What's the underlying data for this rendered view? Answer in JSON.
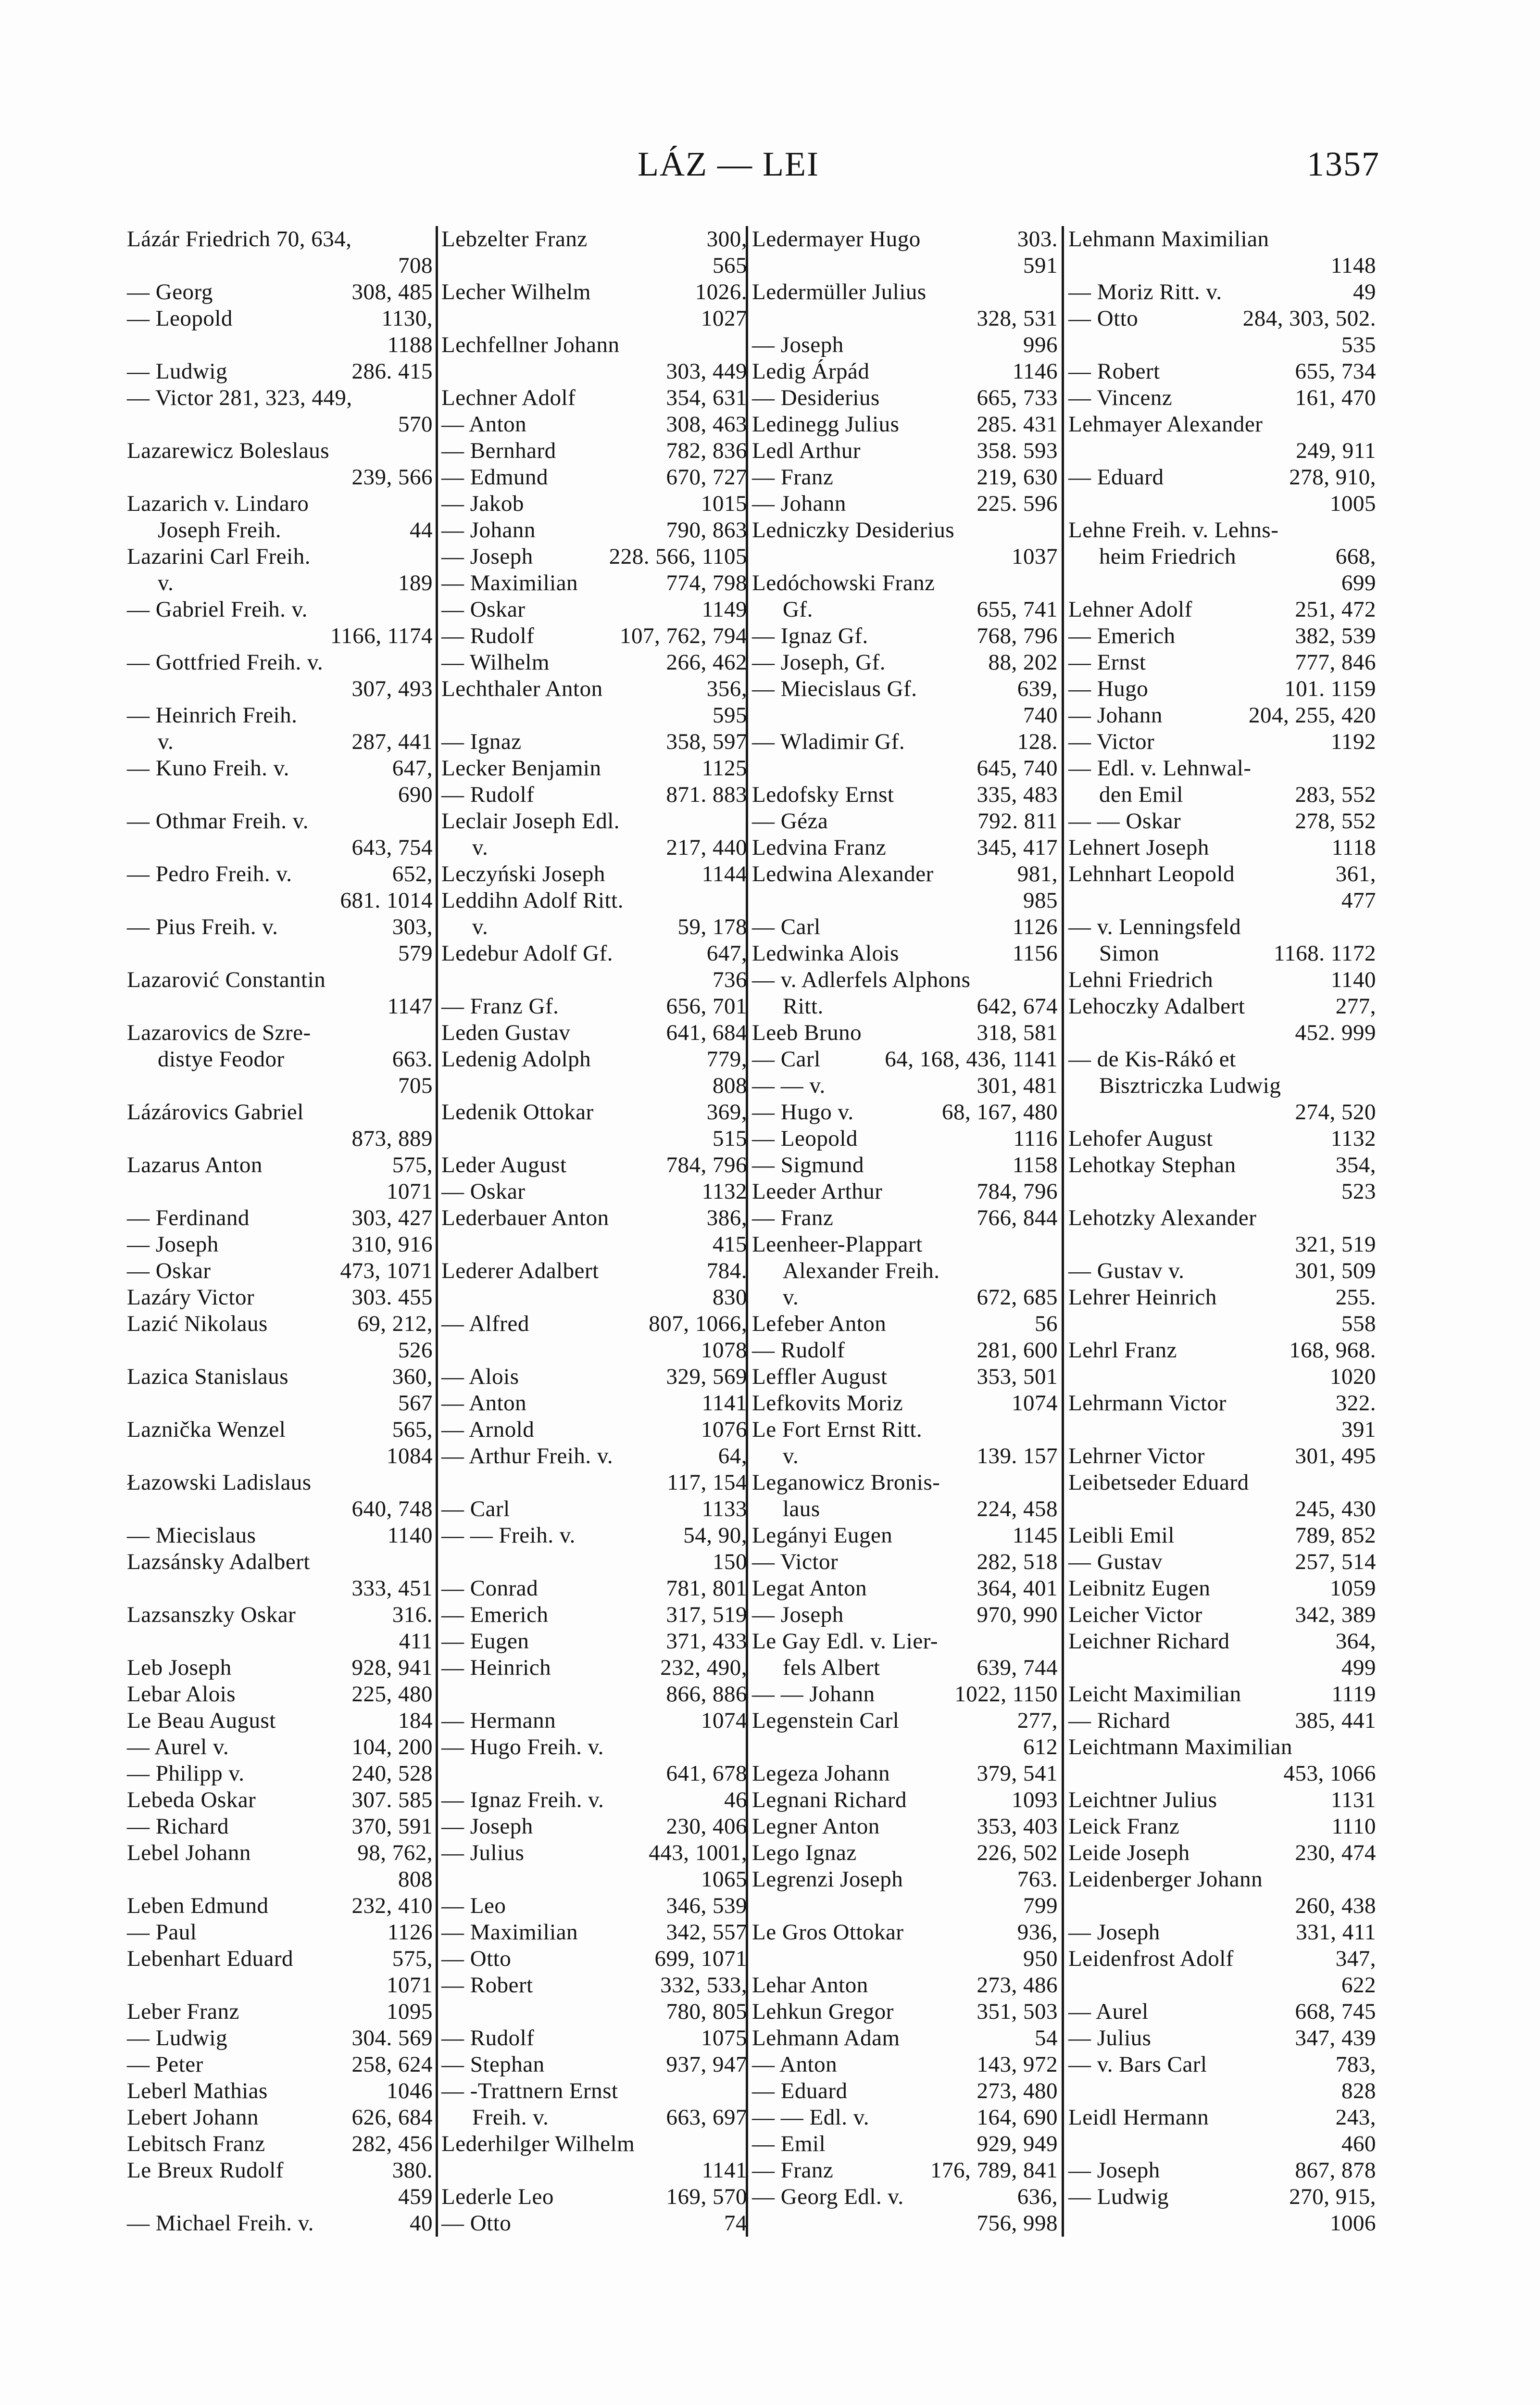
{
  "header": {
    "title": "LÁZ — LEI",
    "page_number": "1357"
  },
  "columns": [
    {
      "lines": [
        [
          "Lázár Friedrich 70, 634,",
          ""
        ],
        [
          "",
          "708"
        ],
        [
          "— Georg",
          "308, 485"
        ],
        [
          "— Leopold",
          "1130,"
        ],
        [
          "",
          "1188"
        ],
        [
          "— Ludwig",
          "286. 415"
        ],
        [
          "— Victor 281, 323, 449,",
          ""
        ],
        [
          "",
          "570"
        ],
        [
          "Lazarewicz Boleslaus",
          ""
        ],
        [
          "",
          "239, 566"
        ],
        [
          "Lazarich v. Lindaro",
          ""
        ],
        [
          "Joseph Freih.",
          "44"
        ],
        [
          "Lazarini Carl Freih.",
          ""
        ],
        [
          "v.",
          "189"
        ],
        [
          "— Gabriel Freih. v.",
          ""
        ],
        [
          "",
          "1166, 1174"
        ],
        [
          "— Gottfried Freih. v.",
          ""
        ],
        [
          "",
          "307, 493"
        ],
        [
          "— Heinrich Freih.",
          ""
        ],
        [
          "v.",
          "287, 441"
        ],
        [
          "— Kuno Freih. v.",
          "647,"
        ],
        [
          "",
          "690"
        ],
        [
          "— Othmar Freih. v.",
          ""
        ],
        [
          "",
          "643, 754"
        ],
        [
          "— Pedro Freih. v.",
          "652,"
        ],
        [
          "",
          "681. 1014"
        ],
        [
          "— Pius Freih. v.",
          "303,"
        ],
        [
          "",
          "579"
        ],
        [
          "Lazarović Constantin",
          ""
        ],
        [
          "",
          "1147"
        ],
        [
          "Lazarovics de Szre-",
          ""
        ],
        [
          "distye Feodor",
          "663."
        ],
        [
          "",
          "705"
        ],
        [
          "Lázárovics Gabriel",
          ""
        ],
        [
          "",
          "873, 889"
        ],
        [
          "Lazarus Anton",
          "575,"
        ],
        [
          "",
          "1071"
        ],
        [
          "— Ferdinand",
          "303, 427"
        ],
        [
          "— Joseph",
          "310, 916"
        ],
        [
          "— Oskar",
          "473, 1071"
        ],
        [
          "Lazáry Victor",
          "303. 455"
        ],
        [
          "Lazić Nikolaus",
          "69, 212,"
        ],
        [
          "",
          "526"
        ],
        [
          "Lazica Stanislaus",
          "360,"
        ],
        [
          "",
          "567"
        ],
        [
          "Laznička Wenzel",
          "565,"
        ],
        [
          "",
          "1084"
        ],
        [
          "Łazowski Ladislaus",
          ""
        ],
        [
          "",
          "640, 748"
        ],
        [
          "— Miecislaus",
          "1140"
        ],
        [
          "Lazsánsky Adalbert",
          ""
        ],
        [
          "",
          "333, 451"
        ],
        [
          "Lazsanszky Oskar",
          "316."
        ],
        [
          "",
          "411"
        ],
        [
          "Leb Joseph",
          "928, 941"
        ],
        [
          "Lebar Alois",
          "225, 480"
        ],
        [
          "Le Beau August",
          "184"
        ],
        [
          "— Aurel v.",
          "104, 200"
        ],
        [
          "— Philipp v.",
          "240, 528"
        ],
        [
          "Lebeda Oskar",
          "307. 585"
        ],
        [
          "— Richard",
          "370, 591"
        ],
        [
          "Lebel Johann",
          "98, 762,"
        ],
        [
          "",
          "808"
        ],
        [
          "Leben Edmund",
          "232, 410"
        ],
        [
          "— Paul",
          "1126"
        ],
        [
          "Lebenhart Eduard",
          "575,"
        ],
        [
          "",
          "1071"
        ],
        [
          "Leber Franz",
          "1095"
        ],
        [
          "— Ludwig",
          "304. 569"
        ],
        [
          "— Peter",
          "258, 624"
        ],
        [
          "Leberl Mathias",
          "1046"
        ],
        [
          "Lebert Johann",
          "626, 684"
        ],
        [
          "Lebitsch Franz",
          "282, 456"
        ],
        [
          "Le Breux Rudolf",
          "380."
        ],
        [
          "",
          "459"
        ],
        [
          "— Michael Freih. v.",
          "40"
        ]
      ]
    },
    {
      "lines": [
        [
          "Lebzelter Franz",
          "300,"
        ],
        [
          "",
          "565"
        ],
        [
          "Lecher Wilhelm",
          "1026."
        ],
        [
          "",
          "1027"
        ],
        [
          "Lechfellner Johann",
          ""
        ],
        [
          "",
          "303, 449"
        ],
        [
          "Lechner Adolf",
          "354, 631"
        ],
        [
          "— Anton",
          "308, 463"
        ],
        [
          "— Bernhard",
          "782, 836"
        ],
        [
          "— Edmund",
          "670, 727"
        ],
        [
          "— Jakob",
          "1015"
        ],
        [
          "— Johann",
          "790, 863"
        ],
        [
          "— Joseph",
          "228. 566, 1105"
        ],
        [
          "— Maximilian",
          "774, 798"
        ],
        [
          "— Oskar",
          "1149"
        ],
        [
          "— Rudolf",
          "107, 762, 794"
        ],
        [
          "— Wilhelm",
          "266, 462"
        ],
        [
          "Lechthaler Anton",
          "356,"
        ],
        [
          "",
          "595"
        ],
        [
          "— Ignaz",
          "358, 597"
        ],
        [
          "Lecker Benjamin",
          "1125"
        ],
        [
          "— Rudolf",
          "871. 883"
        ],
        [
          "Leclair Joseph Edl.",
          ""
        ],
        [
          "v.",
          "217, 440"
        ],
        [
          "Leczyński Joseph",
          "1144"
        ],
        [
          "Leddihn Adolf Ritt.",
          ""
        ],
        [
          "v.",
          "59, 178"
        ],
        [
          "Ledebur Adolf Gf.",
          "647,"
        ],
        [
          "",
          "736"
        ],
        [
          "— Franz Gf.",
          "656, 701"
        ],
        [
          "Leden Gustav",
          "641, 684"
        ],
        [
          "Ledenig Adolph",
          "779,"
        ],
        [
          "",
          "808"
        ],
        [
          "Ledenik Ottokar",
          "369,"
        ],
        [
          "",
          "515"
        ],
        [
          "Leder August",
          "784, 796"
        ],
        [
          "— Oskar",
          "1132"
        ],
        [
          "Lederbauer Anton",
          "386,"
        ],
        [
          "",
          "415"
        ],
        [
          "Lederer Adalbert",
          "784."
        ],
        [
          "",
          "830"
        ],
        [
          "— Alfred",
          "807, 1066,"
        ],
        [
          "",
          "1078"
        ],
        [
          "— Alois",
          "329, 569"
        ],
        [
          "— Anton",
          "1141"
        ],
        [
          "— Arnold",
          "1076"
        ],
        [
          "— Arthur Freih. v.",
          "64,"
        ],
        [
          "",
          "117, 154"
        ],
        [
          "— Carl",
          "1133"
        ],
        [
          "— — Freih. v.",
          "54, 90,"
        ],
        [
          "",
          "150"
        ],
        [
          "— Conrad",
          "781, 801"
        ],
        [
          "— Emerich",
          "317, 519"
        ],
        [
          "— Eugen",
          "371, 433"
        ],
        [
          "— Heinrich",
          "232, 490,"
        ],
        [
          "",
          "866, 886"
        ],
        [
          "— Hermann",
          "1074"
        ],
        [
          "— Hugo Freih. v.",
          ""
        ],
        [
          "",
          "641, 678"
        ],
        [
          "— Ignaz Freih. v.",
          "46"
        ],
        [
          "— Joseph",
          "230, 406"
        ],
        [
          "— Julius",
          "443, 1001,"
        ],
        [
          "",
          "1065"
        ],
        [
          "— Leo",
          "346, 539"
        ],
        [
          "— Maximilian",
          "342, 557"
        ],
        [
          "— Otto",
          "699, 1071"
        ],
        [
          "— Robert",
          "332, 533,"
        ],
        [
          "",
          "780, 805"
        ],
        [
          "— Rudolf",
          "1075"
        ],
        [
          "— Stephan",
          "937, 947"
        ],
        [
          "— -Trattnern Ernst",
          ""
        ],
        [
          "Freih. v.",
          "663, 697"
        ],
        [
          "Lederhilger Wilhelm",
          ""
        ],
        [
          "",
          "1141"
        ],
        [
          "Lederle Leo",
          "169, 570"
        ],
        [
          "— Otto",
          "74"
        ]
      ]
    },
    {
      "lines": [
        [
          "Ledermayer Hugo",
          "303."
        ],
        [
          "",
          "591"
        ],
        [
          "Ledermüller Julius",
          ""
        ],
        [
          "",
          "328, 531"
        ],
        [
          "— Joseph",
          "996"
        ],
        [
          "Ledig Árpád",
          "1146"
        ],
        [
          "— Desiderius",
          "665, 733"
        ],
        [
          "Ledinegg Julius",
          "285. 431"
        ],
        [
          "Ledl Arthur",
          "358. 593"
        ],
        [
          "— Franz",
          "219, 630"
        ],
        [
          "— Johann",
          "225. 596"
        ],
        [
          "Ledniczky Desiderius",
          ""
        ],
        [
          "",
          "1037"
        ],
        [
          "Ledóchowski Franz",
          ""
        ],
        [
          "Gf.",
          "655, 741"
        ],
        [
          "— Ignaz Gf.",
          "768, 796"
        ],
        [
          "— Joseph, Gf.",
          "88, 202"
        ],
        [
          "— Miecislaus Gf.",
          "639,"
        ],
        [
          "",
          "740"
        ],
        [
          "— Wladimir Gf.",
          "128."
        ],
        [
          "",
          "645, 740"
        ],
        [
          "Ledofsky Ernst",
          "335, 483"
        ],
        [
          "— Géza",
          "792. 811"
        ],
        [
          "Ledvina Franz",
          "345, 417"
        ],
        [
          "Ledwina Alexander",
          "981,"
        ],
        [
          "",
          "985"
        ],
        [
          "— Carl",
          "1126"
        ],
        [
          "Ledwinka Alois",
          "1156"
        ],
        [
          "— v. Adlerfels Alphons",
          ""
        ],
        [
          "Ritt.",
          "642, 674"
        ],
        [
          "Leeb Bruno",
          "318, 581"
        ],
        [
          "— Carl",
          "64, 168, 436, 1141"
        ],
        [
          "— — v.",
          "301, 481"
        ],
        [
          "— Hugo v.",
          "68, 167, 480"
        ],
        [
          "— Leopold",
          "1116"
        ],
        [
          "— Sigmund",
          "1158"
        ],
        [
          "Leeder Arthur",
          "784, 796"
        ],
        [
          "— Franz",
          "766, 844"
        ],
        [
          "Leenheer-Plappart",
          ""
        ],
        [
          "Alexander Freih.",
          ""
        ],
        [
          "v.",
          "672, 685"
        ],
        [
          "Lefeber Anton",
          "56"
        ],
        [
          "— Rudolf",
          "281, 600"
        ],
        [
          "Leffler August",
          "353, 501"
        ],
        [
          "Lefkovits Moriz",
          "1074"
        ],
        [
          "Le Fort Ernst Ritt.",
          ""
        ],
        [
          "v.",
          "139. 157"
        ],
        [
          "Leganowicz Bronis-",
          ""
        ],
        [
          "laus",
          "224, 458"
        ],
        [
          "Legányi Eugen",
          "1145"
        ],
        [
          "— Victor",
          "282, 518"
        ],
        [
          "Legat Anton",
          "364, 401"
        ],
        [
          "— Joseph",
          "970, 990"
        ],
        [
          "Le Gay Edl. v. Lier-",
          ""
        ],
        [
          "fels Albert",
          "639, 744"
        ],
        [
          "— — Johann",
          "1022, 1150"
        ],
        [
          "Legenstein Carl",
          "277,"
        ],
        [
          "",
          "612"
        ],
        [
          "Legeza Johann",
          "379, 541"
        ],
        [
          "Legnani Richard",
          "1093"
        ],
        [
          "Legner Anton",
          "353, 403"
        ],
        [
          "Lego Ignaz",
          "226, 502"
        ],
        [
          "Legrenzi Joseph",
          "763."
        ],
        [
          "",
          "799"
        ],
        [
          "Le Gros Ottokar",
          "936,"
        ],
        [
          "",
          "950"
        ],
        [
          "Lehar Anton",
          "273, 486"
        ],
        [
          "Lehkun Gregor",
          "351, 503"
        ],
        [
          "Lehmann Adam",
          "54"
        ],
        [
          "— Anton",
          "143, 972"
        ],
        [
          "— Eduard",
          "273, 480"
        ],
        [
          "— — Edl. v.",
          "164, 690"
        ],
        [
          "— Emil",
          "929, 949"
        ],
        [
          "— Franz",
          "176, 789, 841"
        ],
        [
          "— Georg Edl. v.",
          "636,"
        ],
        [
          "",
          "756, 998"
        ]
      ]
    },
    {
      "lines": [
        [
          "Lehmann Maximilian",
          ""
        ],
        [
          "",
          "1148"
        ],
        [
          "— Moriz Ritt. v.",
          "49"
        ],
        [
          "— Otto",
          "284, 303, 502."
        ],
        [
          "",
          "535"
        ],
        [
          "— Robert",
          "655, 734"
        ],
        [
          "— Vincenz",
          "161, 470"
        ],
        [
          "Lehmayer Alexander",
          ""
        ],
        [
          "",
          "249, 911"
        ],
        [
          "— Eduard",
          "278, 910,"
        ],
        [
          "",
          "1005"
        ],
        [
          "Lehne Freih. v. Lehns-",
          ""
        ],
        [
          "heim Friedrich",
          "668,"
        ],
        [
          "",
          "699"
        ],
        [
          "Lehner Adolf",
          "251, 472"
        ],
        [
          "— Emerich",
          "382, 539"
        ],
        [
          "— Ernst",
          "777, 846"
        ],
        [
          "— Hugo",
          "101. 1159"
        ],
        [
          "— Johann",
          "204, 255, 420"
        ],
        [
          "— Victor",
          "1192"
        ],
        [
          "— Edl. v. Lehnwal-",
          ""
        ],
        [
          "den Emil",
          "283, 552"
        ],
        [
          "— — Oskar",
          "278, 552"
        ],
        [
          "Lehnert Joseph",
          "1118"
        ],
        [
          "Lehnhart Leopold",
          "361,"
        ],
        [
          "",
          "477"
        ],
        [
          "— v. Lenningsfeld",
          ""
        ],
        [
          "Simon",
          "1168. 1172"
        ],
        [
          "Lehni Friedrich",
          "1140"
        ],
        [
          "Lehoczky Adalbert",
          "277,"
        ],
        [
          "",
          "452. 999"
        ],
        [
          "— de Kis-Rákó et",
          ""
        ],
        [
          "Bisztriczka Ludwig",
          ""
        ],
        [
          "",
          "274, 520"
        ],
        [
          "Lehofer August",
          "1132"
        ],
        [
          "Lehotkay Stephan",
          "354,"
        ],
        [
          "",
          "523"
        ],
        [
          "Lehotzky Alexander",
          ""
        ],
        [
          "",
          "321, 519"
        ],
        [
          "— Gustav v.",
          "301, 509"
        ],
        [
          "Lehrer Heinrich",
          "255."
        ],
        [
          "",
          "558"
        ],
        [
          "Lehrl Franz",
          "168, 968."
        ],
        [
          "",
          "1020"
        ],
        [
          "Lehrmann Victor",
          "322."
        ],
        [
          "",
          "391"
        ],
        [
          "Lehrner Victor",
          "301, 495"
        ],
        [
          "Leibetseder Eduard",
          ""
        ],
        [
          "",
          "245, 430"
        ],
        [
          "Leibli Emil",
          "789, 852"
        ],
        [
          "— Gustav",
          "257, 514"
        ],
        [
          "Leibnitz Eugen",
          "1059"
        ],
        [
          "Leicher Victor",
          "342, 389"
        ],
        [
          "Leichner Richard",
          "364,"
        ],
        [
          "",
          "499"
        ],
        [
          "Leicht Maximilian",
          "1119"
        ],
        [
          "— Richard",
          "385, 441"
        ],
        [
          "Leichtmann Maximilian",
          ""
        ],
        [
          "",
          "453, 1066"
        ],
        [
          "Leichtner Julius",
          "1131"
        ],
        [
          "Leick Franz",
          "1110"
        ],
        [
          "Leide Joseph",
          "230, 474"
        ],
        [
          "Leidenberger Johann",
          ""
        ],
        [
          "",
          "260, 438"
        ],
        [
          "— Joseph",
          "331, 411"
        ],
        [
          "Leidenfrost Adolf",
          "347,"
        ],
        [
          "",
          "622"
        ],
        [
          "— Aurel",
          "668, 745"
        ],
        [
          "— Julius",
          "347, 439"
        ],
        [
          "— v. Bars Carl",
          "783,"
        ],
        [
          "",
          "828"
        ],
        [
          "Leidl Hermann",
          "243,"
        ],
        [
          "",
          "460"
        ],
        [
          "— Joseph",
          "867, 878"
        ],
        [
          "— Ludwig",
          "270, 915,"
        ],
        [
          "",
          "1006"
        ]
      ]
    }
  ]
}
